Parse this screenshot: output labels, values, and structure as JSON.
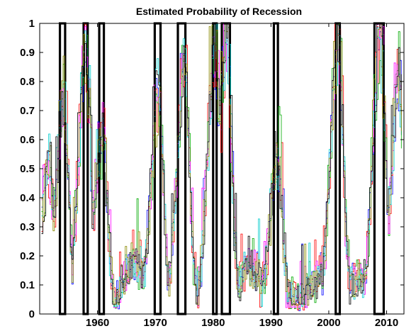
{
  "chart_data": {
    "type": "line",
    "title": "Estimated Probability of Recession",
    "xlabel": "",
    "ylabel": "",
    "xlim": [
      1950,
      2013
    ],
    "ylim": [
      0,
      1
    ],
    "yticks": [
      0,
      0.1,
      0.2,
      0.3,
      0.4,
      0.5,
      0.6,
      0.7,
      0.8,
      0.9,
      1
    ],
    "ytick_labels": [
      "0",
      "0.1",
      "0.2",
      "0.3",
      "0.4",
      "0.5",
      "0.6",
      "0.7",
      "0.8",
      "0.9",
      "1"
    ],
    "xticks": [
      1960,
      1970,
      1980,
      1990,
      2000,
      2010
    ],
    "xtick_labels": [
      "1960",
      "1970",
      "1980",
      "1990",
      "2000",
      "2010"
    ],
    "grid": false,
    "legend": "none",
    "recession_bands": [
      [
        1953.5,
        1954.4
      ],
      [
        1957.6,
        1958.3
      ],
      [
        1960.3,
        1961.1
      ],
      [
        1969.9,
        1970.9
      ],
      [
        1973.9,
        1975.2
      ],
      [
        1980.0,
        1980.6
      ],
      [
        1981.5,
        1982.9
      ],
      [
        1990.5,
        1991.2
      ],
      [
        2001.2,
        2001.9
      ],
      [
        2007.9,
        2009.5
      ]
    ],
    "series_colors": [
      "#0000ff",
      "#ff0000",
      "#00aa00",
      "#ff00ff",
      "#00cccc",
      "#888800",
      "#000000"
    ],
    "peaks": [
      {
        "x": 1951.5,
        "y": 0.53
      },
      {
        "x": 1954.0,
        "y": 0.75
      },
      {
        "x": 1957.9,
        "y": 0.92
      },
      {
        "x": 1960.7,
        "y": 0.63
      },
      {
        "x": 1970.4,
        "y": 0.77
      },
      {
        "x": 1974.9,
        "y": 0.88
      },
      {
        "x": 1980.2,
        "y": 0.97
      },
      {
        "x": 1982.2,
        "y": 1.0
      },
      {
        "x": 1991.0,
        "y": 0.55
      },
      {
        "x": 2001.5,
        "y": 0.98
      },
      {
        "x": 2008.8,
        "y": 1.0
      },
      {
        "x": 2012.0,
        "y": 0.85
      }
    ]
  }
}
